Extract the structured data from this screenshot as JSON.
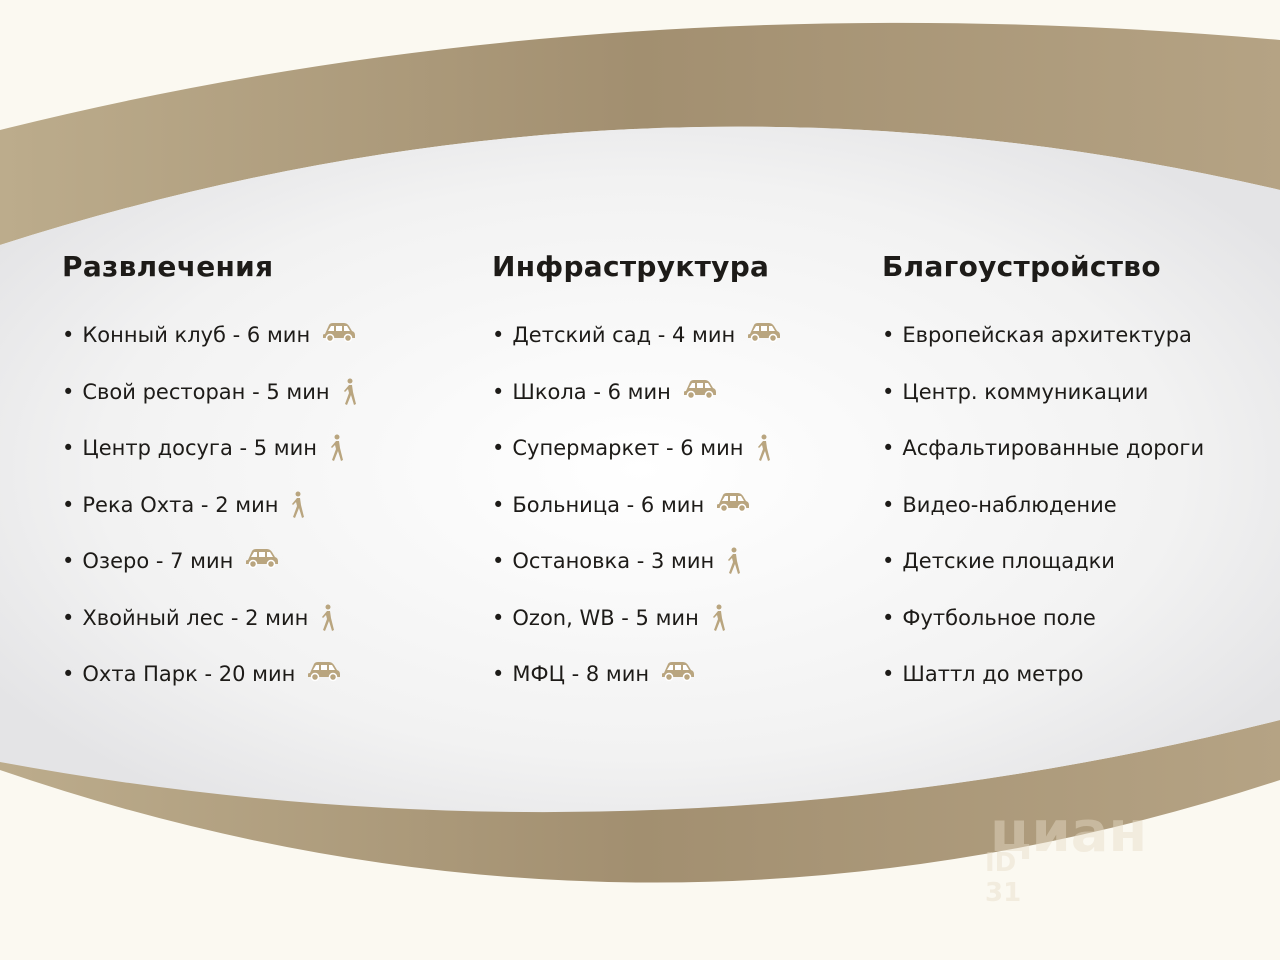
{
  "colors": {
    "gold": "#a8977a",
    "icon": "#b9a57f",
    "background": "#fbf9f1"
  },
  "columns": [
    {
      "title": "Развлечения",
      "items": [
        {
          "label": "Конный клуб - 6 мин",
          "icon": "car-icon"
        },
        {
          "label": "Свой ресторан - 5 мин",
          "icon": "walking-icon"
        },
        {
          "label": "Центр досуга - 5 мин",
          "icon": "walking-icon"
        },
        {
          "label": "Река Охта - 2 мин",
          "icon": "walking-icon"
        },
        {
          "label": "Озеро - 7 мин",
          "icon": "car-icon"
        },
        {
          "label": "Хвойный лес - 2 мин",
          "icon": "walking-icon"
        },
        {
          "label": "Охта Парк - 20 мин",
          "icon": "car-icon"
        }
      ]
    },
    {
      "title": "Инфраструктура",
      "items": [
        {
          "label": "Детский сад - 4 мин",
          "icon": "car-icon"
        },
        {
          "label": "Школа - 6 мин",
          "icon": "car-icon"
        },
        {
          "label": "Супермаркет - 6 мин",
          "icon": "walking-icon"
        },
        {
          "label": "Больница - 6 мин",
          "icon": "car-icon"
        },
        {
          "label": "Остановка - 3 мин",
          "icon": "walking-icon"
        },
        {
          "label": "Ozon, WB - 5 мин",
          "icon": "walking-icon"
        },
        {
          "label": "МФЦ - 8 мин",
          "icon": "car-icon"
        }
      ]
    },
    {
      "title": "Благоустройство",
      "items": [
        {
          "label": "Европейская архитектура",
          "icon": ""
        },
        {
          "label": "Центр. коммуникации",
          "icon": ""
        },
        {
          "label": "Асфальтированные дороги",
          "icon": ""
        },
        {
          "label": "Видео-наблюдение",
          "icon": ""
        },
        {
          "label": "Детские площадки",
          "icon": ""
        },
        {
          "label": "Футбольное поле",
          "icon": ""
        },
        {
          "label": "Шаттл до метро",
          "icon": ""
        }
      ]
    }
  ],
  "bullet": "•",
  "watermark": {
    "brand": "циан",
    "id": "ID 31"
  }
}
